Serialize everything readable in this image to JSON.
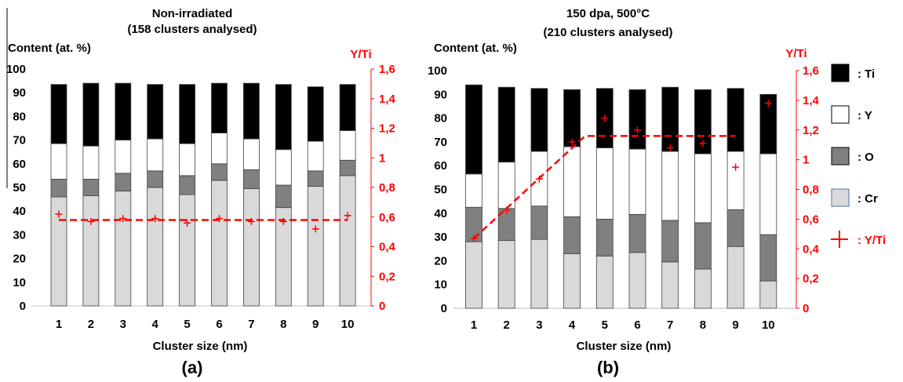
{
  "colors": {
    "ti": "#000000",
    "y": "#ffffff",
    "o": "#808080",
    "cr": "#d9d9d9",
    "ratio": "#ff0000",
    "text": "#000000"
  },
  "legend": {
    "items": [
      {
        "label": ": Ti",
        "key": "ti"
      },
      {
        "label": ": Y",
        "key": "y"
      },
      {
        "label": ": O",
        "key": "o"
      },
      {
        "label": ": Cr",
        "key": "cr"
      },
      {
        "label": ": Y/Ti",
        "key": "ratio"
      }
    ]
  },
  "chart_data": [
    {
      "type": "bar",
      "stacked": true,
      "title": "Non-irradiated",
      "subtitle": "(158 clusters analysed)",
      "panel_label": "(a)",
      "xlabel": "Cluster size (nm)",
      "ylabel": "Content (at. %)",
      "y2label": "Y/Ti",
      "categories": [
        "1",
        "2",
        "3",
        "4",
        "5",
        "6",
        "7",
        "8",
        "9",
        "10"
      ],
      "ylim": [
        0,
        100
      ],
      "y2lim": [
        0,
        1.6
      ],
      "yticks": [
        "0",
        "10",
        "20",
        "30",
        "40",
        "50",
        "60",
        "70",
        "80",
        "90",
        "100"
      ],
      "y2ticks": [
        "0",
        "0,2",
        "0,4",
        "0,6",
        "0,8",
        "1",
        "1,2",
        "1,4",
        "1,6"
      ],
      "series": [
        {
          "name": "Cr",
          "key": "cr",
          "values": [
            46,
            46.5,
            48.5,
            50,
            47,
            53,
            49.5,
            41.5,
            50.5,
            55
          ]
        },
        {
          "name": "O",
          "key": "o",
          "values": [
            7.5,
            7,
            7.5,
            7,
            8,
            7,
            8,
            9.5,
            6.5,
            6.5
          ]
        },
        {
          "name": "Y",
          "key": "y",
          "values": [
            15,
            14,
            14,
            13.5,
            13.5,
            13,
            13,
            15,
            12.5,
            12.5
          ]
        },
        {
          "name": "Ti",
          "key": "ti",
          "values": [
            25,
            26.5,
            24,
            23,
            25,
            21,
            23.5,
            27.5,
            23,
            19.5
          ]
        }
      ],
      "ratio_points": [
        0.62,
        0.57,
        0.59,
        0.59,
        0.56,
        0.59,
        0.57,
        0.57,
        0.52,
        0.61
      ],
      "trend": [
        [
          1,
          0.58
        ],
        [
          10,
          0.58
        ]
      ],
      "grid": false
    },
    {
      "type": "bar",
      "stacked": true,
      "title": "150 dpa, 500°C",
      "subtitle": "(210 clusters analysed)",
      "panel_label": "(b)",
      "xlabel": "Cluster size (nm)",
      "ylabel": "Content (at. %)",
      "y2label": "Y/Ti",
      "categories": [
        "1",
        "2",
        "3",
        "4",
        "5",
        "6",
        "7",
        "8",
        "9",
        "10"
      ],
      "ylim": [
        0,
        100
      ],
      "y2lim": [
        0,
        1.6
      ],
      "yticks": [
        "0",
        "10",
        "20",
        "30",
        "40",
        "50",
        "60",
        "70",
        "80",
        "90",
        "100"
      ],
      "y2ticks": [
        "0",
        "0,2",
        "0,4",
        "0,6",
        "0,8",
        "1",
        "1,2",
        "1,4",
        "1,6"
      ],
      "series": [
        {
          "name": "Cr",
          "key": "cr",
          "values": [
            28,
            28.5,
            29,
            23,
            22,
            23.5,
            19.5,
            16.5,
            26,
            11.5
          ]
        },
        {
          "name": "O",
          "key": "o",
          "values": [
            14.5,
            13.5,
            14,
            15.5,
            15.5,
            16,
            17.5,
            19.5,
            15.5,
            19.5
          ]
        },
        {
          "name": "Y",
          "key": "y",
          "values": [
            14,
            19.5,
            23,
            29.5,
            30,
            27.5,
            29,
            29,
            24.5,
            34
          ]
        },
        {
          "name": "Ti",
          "key": "ti",
          "values": [
            37.5,
            31.5,
            26.5,
            24,
            25,
            25,
            27,
            27,
            26.5,
            25
          ]
        }
      ],
      "ratio_points": [
        0.47,
        0.66,
        0.87,
        1.12,
        1.28,
        1.2,
        1.08,
        1.11,
        0.95,
        1.38
      ],
      "trend": [
        [
          1,
          0.47
        ],
        [
          4.4,
          1.16
        ],
        [
          9,
          1.16
        ]
      ],
      "grid": false
    }
  ]
}
